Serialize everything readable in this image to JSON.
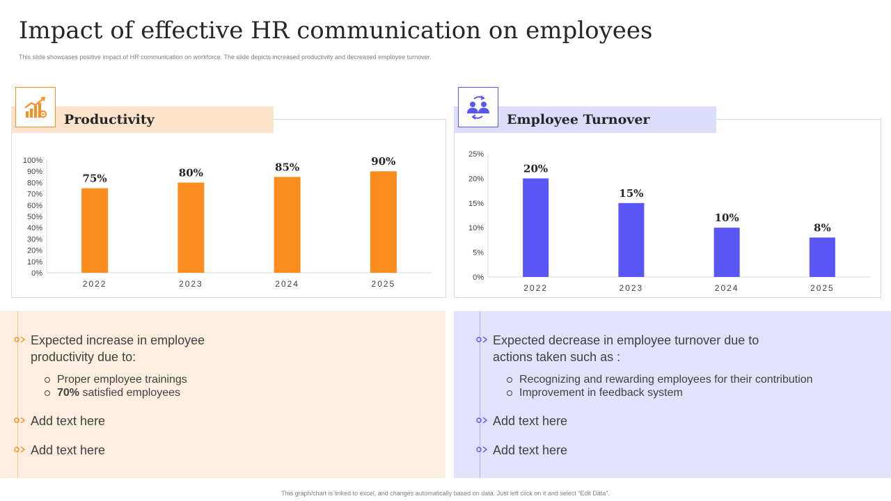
{
  "header": {
    "title": "Impact of effective HR communication on employees",
    "subtitle": "This slide showcases positive impact of HR communication on workforce. The slide depicts increased productivity and decreased employee turnover."
  },
  "productivity": {
    "heading": "Productivity",
    "icon": "growth-chart-icon",
    "accent": "#fb8c1e",
    "bar_color": "#fb8c1e",
    "header_bg": "#fde3cc",
    "panel_bg": "#fdeee0",
    "main_point": "Expected increase in employee productivity due to:",
    "sub_points": [
      {
        "bold": "",
        "text": "Proper employee trainings"
      },
      {
        "bold": "70%",
        "text": " satisfied employees"
      }
    ],
    "extra_points": [
      "Add text here",
      "Add text here"
    ]
  },
  "turnover": {
    "heading": "Employee Turnover",
    "icon": "team-exchange-icon",
    "accent": "#5a55f5",
    "bar_color": "#5a55f5",
    "header_bg": "#dcdcfb",
    "panel_bg": "#e2e2fc",
    "main_point": "Expected decrease in employee turnover due to actions taken such as :",
    "sub_points": [
      {
        "bold": "",
        "text": "Recognizing and rewarding employees for their contribution"
      },
      {
        "bold": "",
        "text": "Improvement  in feedback system"
      }
    ],
    "extra_points": [
      "Add text here",
      "Add text here"
    ]
  },
  "chart_data": [
    {
      "type": "bar",
      "title": "Productivity",
      "categories": [
        "2022",
        "2023",
        "2024",
        "2025"
      ],
      "values": [
        75,
        80,
        85,
        90
      ],
      "data_labels": [
        "75%",
        "80%",
        "85%",
        "90%"
      ],
      "ylim": [
        0,
        100
      ],
      "yticks": [
        "0%",
        "10%",
        "20%",
        "30%",
        "40%",
        "50%",
        "60%",
        "70%",
        "80%",
        "90%",
        "100%"
      ],
      "grid": false,
      "xlabel": "",
      "ylabel": ""
    },
    {
      "type": "bar",
      "title": "Employee Turnover",
      "categories": [
        "2022",
        "2023",
        "2024",
        "2025"
      ],
      "values": [
        20,
        15,
        10,
        8
      ],
      "data_labels": [
        "20%",
        "15%",
        "10%",
        "8%"
      ],
      "ylim": [
        0,
        25
      ],
      "yticks": [
        "0%",
        "5%",
        "10%",
        "15%",
        "20%",
        "25%"
      ],
      "grid": false,
      "xlabel": "",
      "ylabel": ""
    }
  ],
  "footer": {
    "note": "This graph/chart is linked to excel, and changes automatically based on data. Just left click on it and select “Edit Data”."
  }
}
